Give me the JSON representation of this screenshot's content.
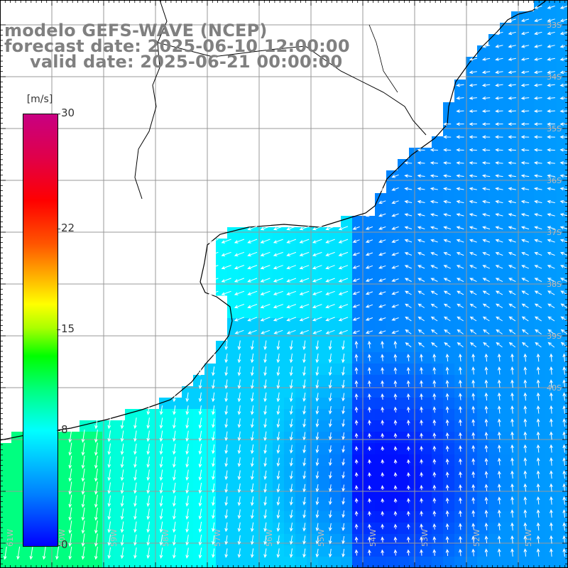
{
  "title": {
    "line1": "modelo GEFS-WAVE (NCEP)",
    "line2": "forecast date: 2025-06-10 12:00:00",
    "line3": "valid date: 2025-06-21 00:00:00"
  },
  "colorbar": {
    "units": "[m/s]",
    "ticks": [
      {
        "label": "30",
        "value": 30
      },
      {
        "label": "22",
        "value": 22
      },
      {
        "label": "15",
        "value": 15
      },
      {
        "label": "8",
        "value": 8
      },
      {
        "label": "0",
        "value": 0
      }
    ],
    "range": [
      0,
      30
    ]
  },
  "grid": {
    "lon_labels": [
      "61W",
      "60W",
      "59W",
      "58W",
      "57W",
      "56W",
      "55W",
      "54W",
      "53W",
      "52W",
      "51W",
      "50W"
    ],
    "lat_labels": [
      "33S",
      "34S",
      "35S",
      "36S",
      "37S",
      "38S",
      "39S",
      "40S"
    ]
  }
}
